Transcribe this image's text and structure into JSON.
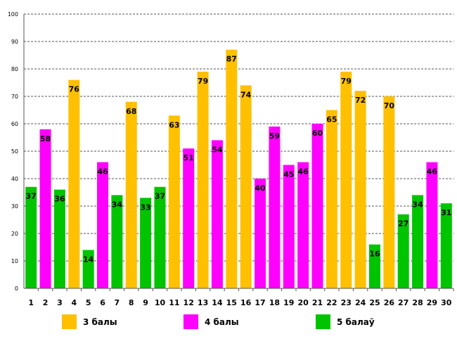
{
  "chart_data": {
    "type": "bar",
    "title": "",
    "xlabel": "",
    "ylabel": "",
    "ylim": [
      0,
      100
    ],
    "yticks": [
      0,
      10,
      20,
      30,
      40,
      50,
      60,
      70,
      80,
      90,
      100
    ],
    "grid": true,
    "categories": [
      "1",
      "2",
      "3",
      "4",
      "5",
      "6",
      "7",
      "8",
      "9",
      "10",
      "11",
      "12",
      "13",
      "14",
      "15",
      "16",
      "17",
      "18",
      "19",
      "20",
      "21",
      "22",
      "23",
      "24",
      "25",
      "26",
      "27",
      "28",
      "29",
      "30"
    ],
    "values": [
      37,
      58,
      36,
      76,
      14,
      46,
      34,
      68,
      33,
      37,
      63,
      51,
      79,
      54,
      87,
      74,
      40,
      59,
      45,
      46,
      60,
      65,
      79,
      72,
      16,
      70,
      27,
      34,
      46,
      31
    ],
    "groups": [
      2,
      1,
      2,
      0,
      2,
      1,
      2,
      0,
      2,
      2,
      0,
      1,
      0,
      1,
      0,
      0,
      1,
      1,
      1,
      1,
      1,
      0,
      0,
      0,
      2,
      0,
      2,
      2,
      1,
      2
    ],
    "legend": [
      {
        "label": "3 балы",
        "color": "#FFC000"
      },
      {
        "label": "4 балы",
        "color": "#FF00FF"
      },
      {
        "label": "5 балаў",
        "color": "#00C400"
      }
    ],
    "legend_position": "bottom"
  }
}
